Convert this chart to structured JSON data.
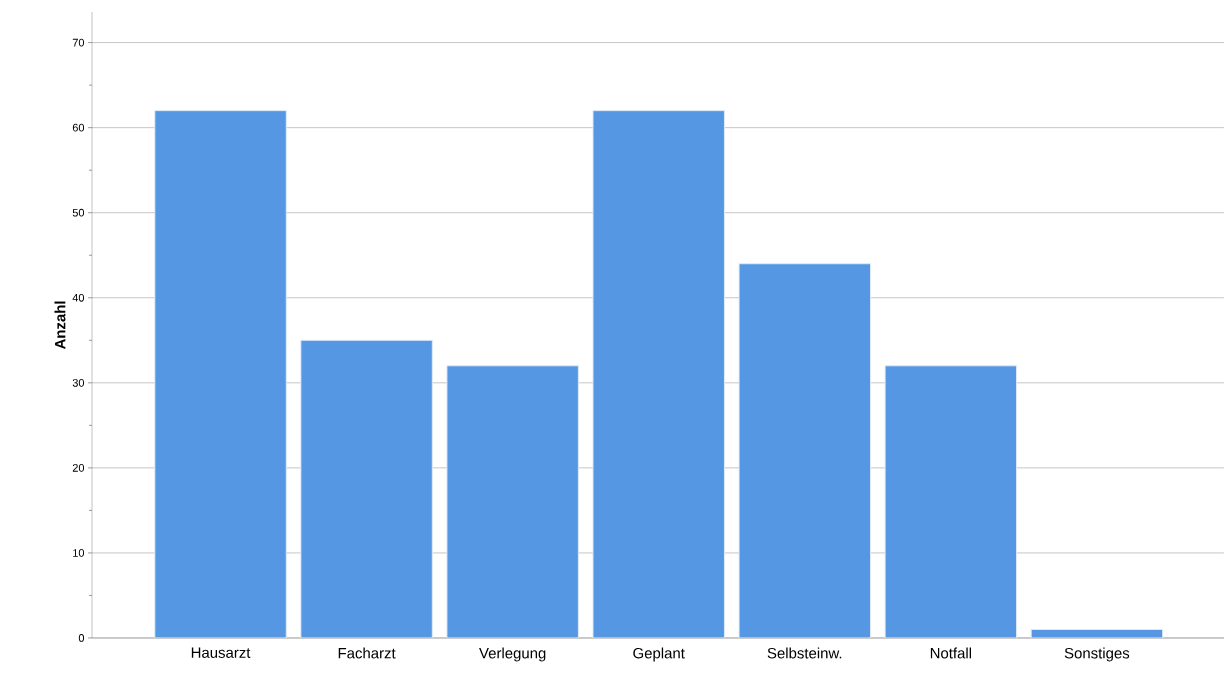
{
  "chart_data": {
    "type": "bar",
    "ylabel": "Anzahl",
    "categories": [
      "Hausarzt",
      "Facharzt",
      "Verlegung",
      "Geplant",
      "Selbsteinw.",
      "Notfall",
      "Sonstiges"
    ],
    "values": [
      62,
      35,
      32,
      62,
      44,
      32,
      1
    ],
    "color": "#5597e3",
    "ylim": [
      0,
      73.6
    ],
    "yticks": [
      0,
      10,
      20,
      30,
      40,
      50,
      60,
      70
    ],
    "grid": "y"
  }
}
